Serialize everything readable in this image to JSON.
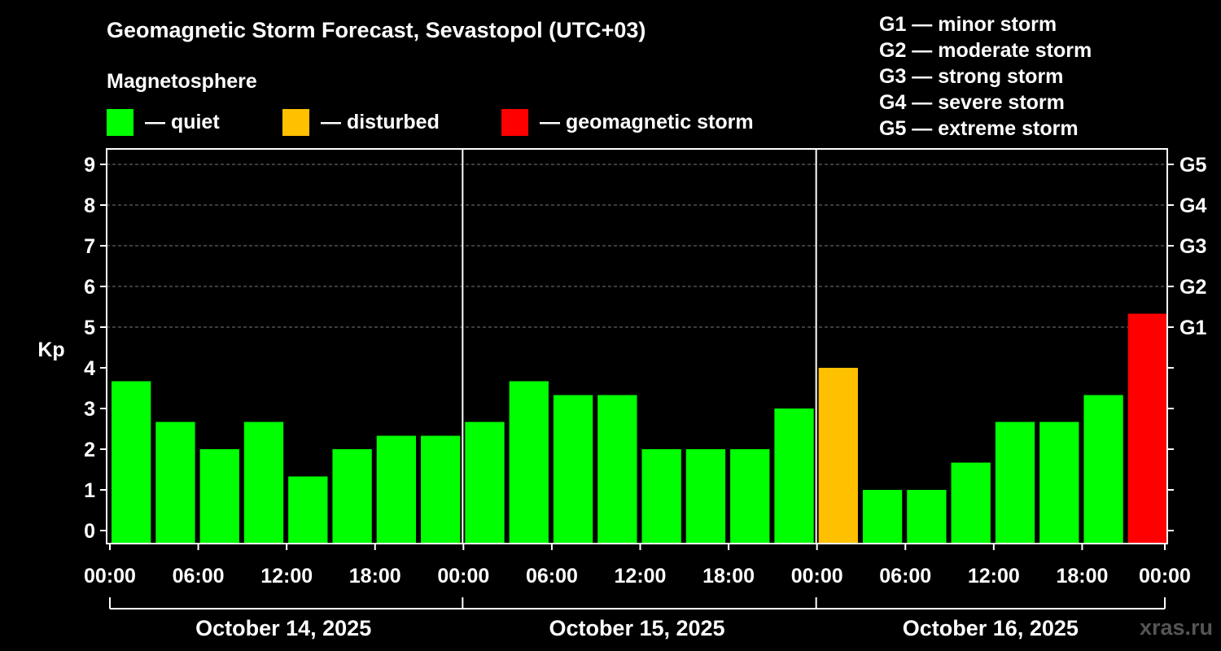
{
  "header": {
    "title": "Geomagnetic Storm Forecast, Sevastopol (UTC+03)",
    "magnetosphere_label": "Magnetosphere"
  },
  "legend": [
    {
      "label": "— quiet",
      "color": "#00ff00"
    },
    {
      "label": "— disturbed",
      "color": "#ffc000"
    },
    {
      "label": "— geomagnetic storm",
      "color": "#ff0000"
    }
  ],
  "storm_scale": [
    "G1 — minor storm",
    "G2 — moderate storm",
    "G3 — strong storm",
    "G4 — severe storm",
    "G5 — extreme storm"
  ],
  "watermark": "xras.ru",
  "chart_data": {
    "type": "bar",
    "ylabel": "Kp",
    "ylim": [
      0,
      9
    ],
    "y_ticks": [
      "0",
      "1",
      "2",
      "3",
      "4",
      "5",
      "6",
      "7",
      "8",
      "9"
    ],
    "right_axis_labels": [
      {
        "kp": 5,
        "label": "G1"
      },
      {
        "kp": 6,
        "label": "G2"
      },
      {
        "kp": 7,
        "label": "G3"
      },
      {
        "kp": 8,
        "label": "G4"
      },
      {
        "kp": 9,
        "label": "G5"
      }
    ],
    "grid": "horizontal-dashed",
    "x_tick_labels": [
      "00:00",
      "06:00",
      "12:00",
      "18:00",
      "00:00",
      "06:00",
      "12:00",
      "18:00",
      "00:00",
      "06:00",
      "12:00",
      "18:00",
      "00:00"
    ],
    "days": [
      "October 14, 2025",
      "October 15, 2025",
      "October 16, 2025"
    ],
    "interval_hours": 3,
    "values": [
      3.67,
      2.67,
      2.0,
      2.67,
      1.33,
      2.0,
      2.33,
      2.33,
      2.67,
      3.67,
      3.33,
      3.33,
      2.0,
      2.0,
      2.0,
      3.0,
      4.0,
      1.0,
      1.0,
      1.67,
      2.67,
      2.67,
      3.33,
      5.33
    ],
    "levels": [
      "quiet",
      "quiet",
      "quiet",
      "quiet",
      "quiet",
      "quiet",
      "quiet",
      "quiet",
      "quiet",
      "quiet",
      "quiet",
      "quiet",
      "quiet",
      "quiet",
      "quiet",
      "quiet",
      "disturbed",
      "quiet",
      "quiet",
      "quiet",
      "quiet",
      "quiet",
      "quiet",
      "storm"
    ],
    "colors": {
      "quiet": "#00ff00",
      "disturbed": "#ffc000",
      "storm": "#ff0000"
    }
  }
}
